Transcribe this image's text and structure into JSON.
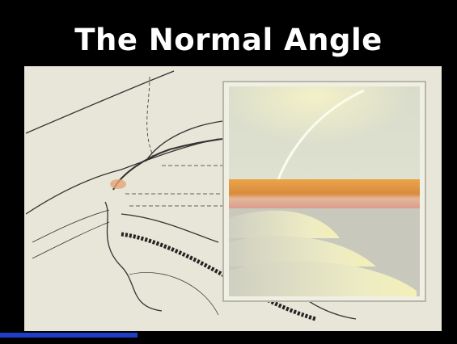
{
  "title": "The Normal Angle"
}
